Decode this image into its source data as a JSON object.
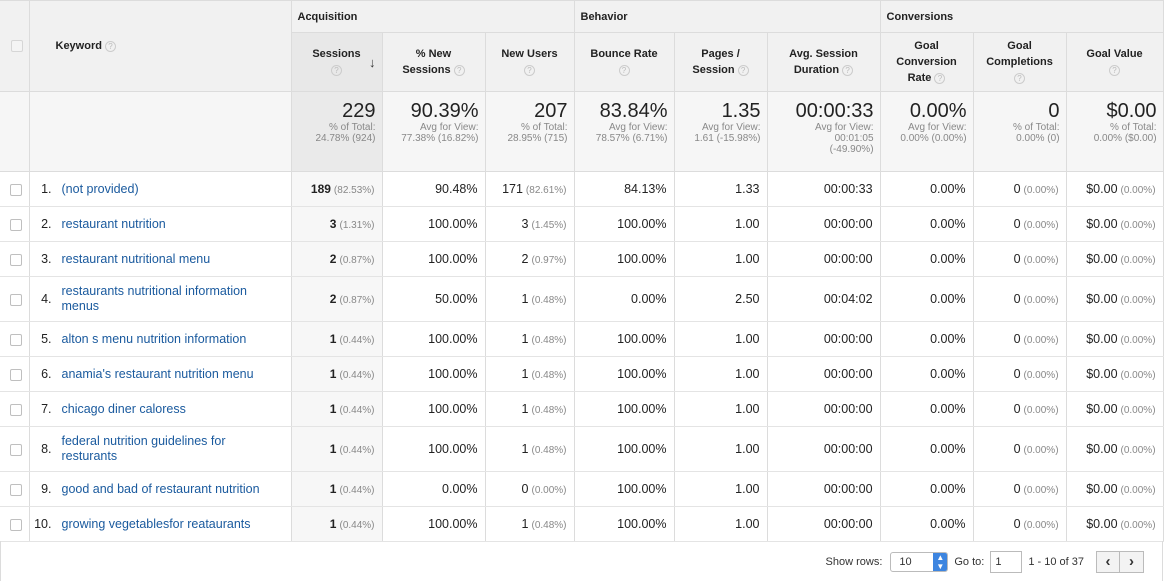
{
  "groups": {
    "acquisition": "Acquisition",
    "behavior": "Behavior",
    "conversions": "Conversions"
  },
  "columns": {
    "keyword": "Keyword",
    "sessions": "Sessions",
    "new_sessions_1": "% New",
    "new_sessions_2": "Sessions",
    "new_users": "New Users",
    "bounce_rate": "Bounce Rate",
    "pages_1": "Pages /",
    "pages_2": "Session",
    "avg_dur_1": "Avg. Session",
    "avg_dur_2": "Duration",
    "gcr_1": "Goal",
    "gcr_2": "Conversion",
    "gcr_3": "Rate",
    "gc_1": "Goal",
    "gc_2": "Completions",
    "goal_value": "Goal Value"
  },
  "help_glyph": "?",
  "sort_glyph": "↓",
  "totals": {
    "sessions": {
      "main": "229",
      "l1": "% of Total:",
      "l2": "24.78% (924)",
      "l3": ""
    },
    "new_sessions": {
      "main": "90.39%",
      "l1": "Avg for View:",
      "l2": "77.38% (16.82%)",
      "l3": ""
    },
    "new_users": {
      "main": "207",
      "l1": "% of Total:",
      "l2": "28.95% (715)",
      "l3": ""
    },
    "bounce_rate": {
      "main": "83.84%",
      "l1": "Avg for View:",
      "l2": "78.57% (6.71%)",
      "l3": ""
    },
    "pages": {
      "main": "1.35",
      "l1": "Avg for View:",
      "l2": "1.61 (-15.98%)",
      "l3": ""
    },
    "avg_dur": {
      "main": "00:00:33",
      "l1": "Avg for View:",
      "l2": "00:01:05",
      "l3": "(-49.90%)"
    },
    "gcr": {
      "main": "0.00%",
      "l1": "Avg for View:",
      "l2": "0.00% (0.00%)",
      "l3": ""
    },
    "gc": {
      "main": "0",
      "l1": "% of Total:",
      "l2": "0.00% (0)",
      "l3": ""
    },
    "goal_value": {
      "main": "$0.00",
      "l1": "% of Total:",
      "l2": "0.00% ($0.00)",
      "l3": ""
    }
  },
  "rows": [
    {
      "idx": "1.",
      "keyword": "(not provided)",
      "sessions": "189",
      "sessions_pct": "(82.53%)",
      "new_sessions": "90.48%",
      "new_users": "171",
      "new_users_pct": "(82.61%)",
      "bounce": "84.13%",
      "pages": "1.33",
      "dur": "00:00:33",
      "gcr": "0.00%",
      "gc": "0",
      "gc_pct": "(0.00%)",
      "gv": "$0.00",
      "gv_pct": "(0.00%)"
    },
    {
      "idx": "2.",
      "keyword": "restaurant nutrition",
      "sessions": "3",
      "sessions_pct": "(1.31%)",
      "new_sessions": "100.00%",
      "new_users": "3",
      "new_users_pct": "(1.45%)",
      "bounce": "100.00%",
      "pages": "1.00",
      "dur": "00:00:00",
      "gcr": "0.00%",
      "gc": "0",
      "gc_pct": "(0.00%)",
      "gv": "$0.00",
      "gv_pct": "(0.00%)"
    },
    {
      "idx": "3.",
      "keyword": "restaurant nutritional menu",
      "sessions": "2",
      "sessions_pct": "(0.87%)",
      "new_sessions": "100.00%",
      "new_users": "2",
      "new_users_pct": "(0.97%)",
      "bounce": "100.00%",
      "pages": "1.00",
      "dur": "00:00:00",
      "gcr": "0.00%",
      "gc": "0",
      "gc_pct": "(0.00%)",
      "gv": "$0.00",
      "gv_pct": "(0.00%)"
    },
    {
      "idx": "4.",
      "keyword": "restaurants nutritional information menus",
      "sessions": "2",
      "sessions_pct": "(0.87%)",
      "new_sessions": "50.00%",
      "new_users": "1",
      "new_users_pct": "(0.48%)",
      "bounce": "0.00%",
      "pages": "2.50",
      "dur": "00:04:02",
      "gcr": "0.00%",
      "gc": "0",
      "gc_pct": "(0.00%)",
      "gv": "$0.00",
      "gv_pct": "(0.00%)"
    },
    {
      "idx": "5.",
      "keyword": "alton s menu nutrition information",
      "sessions": "1",
      "sessions_pct": "(0.44%)",
      "new_sessions": "100.00%",
      "new_users": "1",
      "new_users_pct": "(0.48%)",
      "bounce": "100.00%",
      "pages": "1.00",
      "dur": "00:00:00",
      "gcr": "0.00%",
      "gc": "0",
      "gc_pct": "(0.00%)",
      "gv": "$0.00",
      "gv_pct": "(0.00%)"
    },
    {
      "idx": "6.",
      "keyword": "anamia's restaurant nutrition menu",
      "sessions": "1",
      "sessions_pct": "(0.44%)",
      "new_sessions": "100.00%",
      "new_users": "1",
      "new_users_pct": "(0.48%)",
      "bounce": "100.00%",
      "pages": "1.00",
      "dur": "00:00:00",
      "gcr": "0.00%",
      "gc": "0",
      "gc_pct": "(0.00%)",
      "gv": "$0.00",
      "gv_pct": "(0.00%)"
    },
    {
      "idx": "7.",
      "keyword": "chicago diner caloress",
      "sessions": "1",
      "sessions_pct": "(0.44%)",
      "new_sessions": "100.00%",
      "new_users": "1",
      "new_users_pct": "(0.48%)",
      "bounce": "100.00%",
      "pages": "1.00",
      "dur": "00:00:00",
      "gcr": "0.00%",
      "gc": "0",
      "gc_pct": "(0.00%)",
      "gv": "$0.00",
      "gv_pct": "(0.00%)"
    },
    {
      "idx": "8.",
      "keyword": "federal nutrition guidelines for resturants",
      "sessions": "1",
      "sessions_pct": "(0.44%)",
      "new_sessions": "100.00%",
      "new_users": "1",
      "new_users_pct": "(0.48%)",
      "bounce": "100.00%",
      "pages": "1.00",
      "dur": "00:00:00",
      "gcr": "0.00%",
      "gc": "0",
      "gc_pct": "(0.00%)",
      "gv": "$0.00",
      "gv_pct": "(0.00%)"
    },
    {
      "idx": "9.",
      "keyword": "good and bad of restaurant nutrition",
      "sessions": "1",
      "sessions_pct": "(0.44%)",
      "new_sessions": "0.00%",
      "new_users": "0",
      "new_users_pct": "(0.00%)",
      "bounce": "100.00%",
      "pages": "1.00",
      "dur": "00:00:00",
      "gcr": "0.00%",
      "gc": "0",
      "gc_pct": "(0.00%)",
      "gv": "$0.00",
      "gv_pct": "(0.00%)"
    },
    {
      "idx": "10.",
      "keyword": "growing vegetablesfor reataurants",
      "sessions": "1",
      "sessions_pct": "(0.44%)",
      "new_sessions": "100.00%",
      "new_users": "1",
      "new_users_pct": "(0.48%)",
      "bounce": "100.00%",
      "pages": "1.00",
      "dur": "00:00:00",
      "gcr": "0.00%",
      "gc": "0",
      "gc_pct": "(0.00%)",
      "gv": "$0.00",
      "gv_pct": "(0.00%)"
    }
  ],
  "footer": {
    "show_rows_label": "Show rows:",
    "show_rows_value": "10",
    "caret_up": "▲",
    "caret_down": "▼",
    "goto_label": "Go to:",
    "goto_value": "1",
    "range": "1 - 10 of 37",
    "prev": "‹",
    "next": "›"
  }
}
